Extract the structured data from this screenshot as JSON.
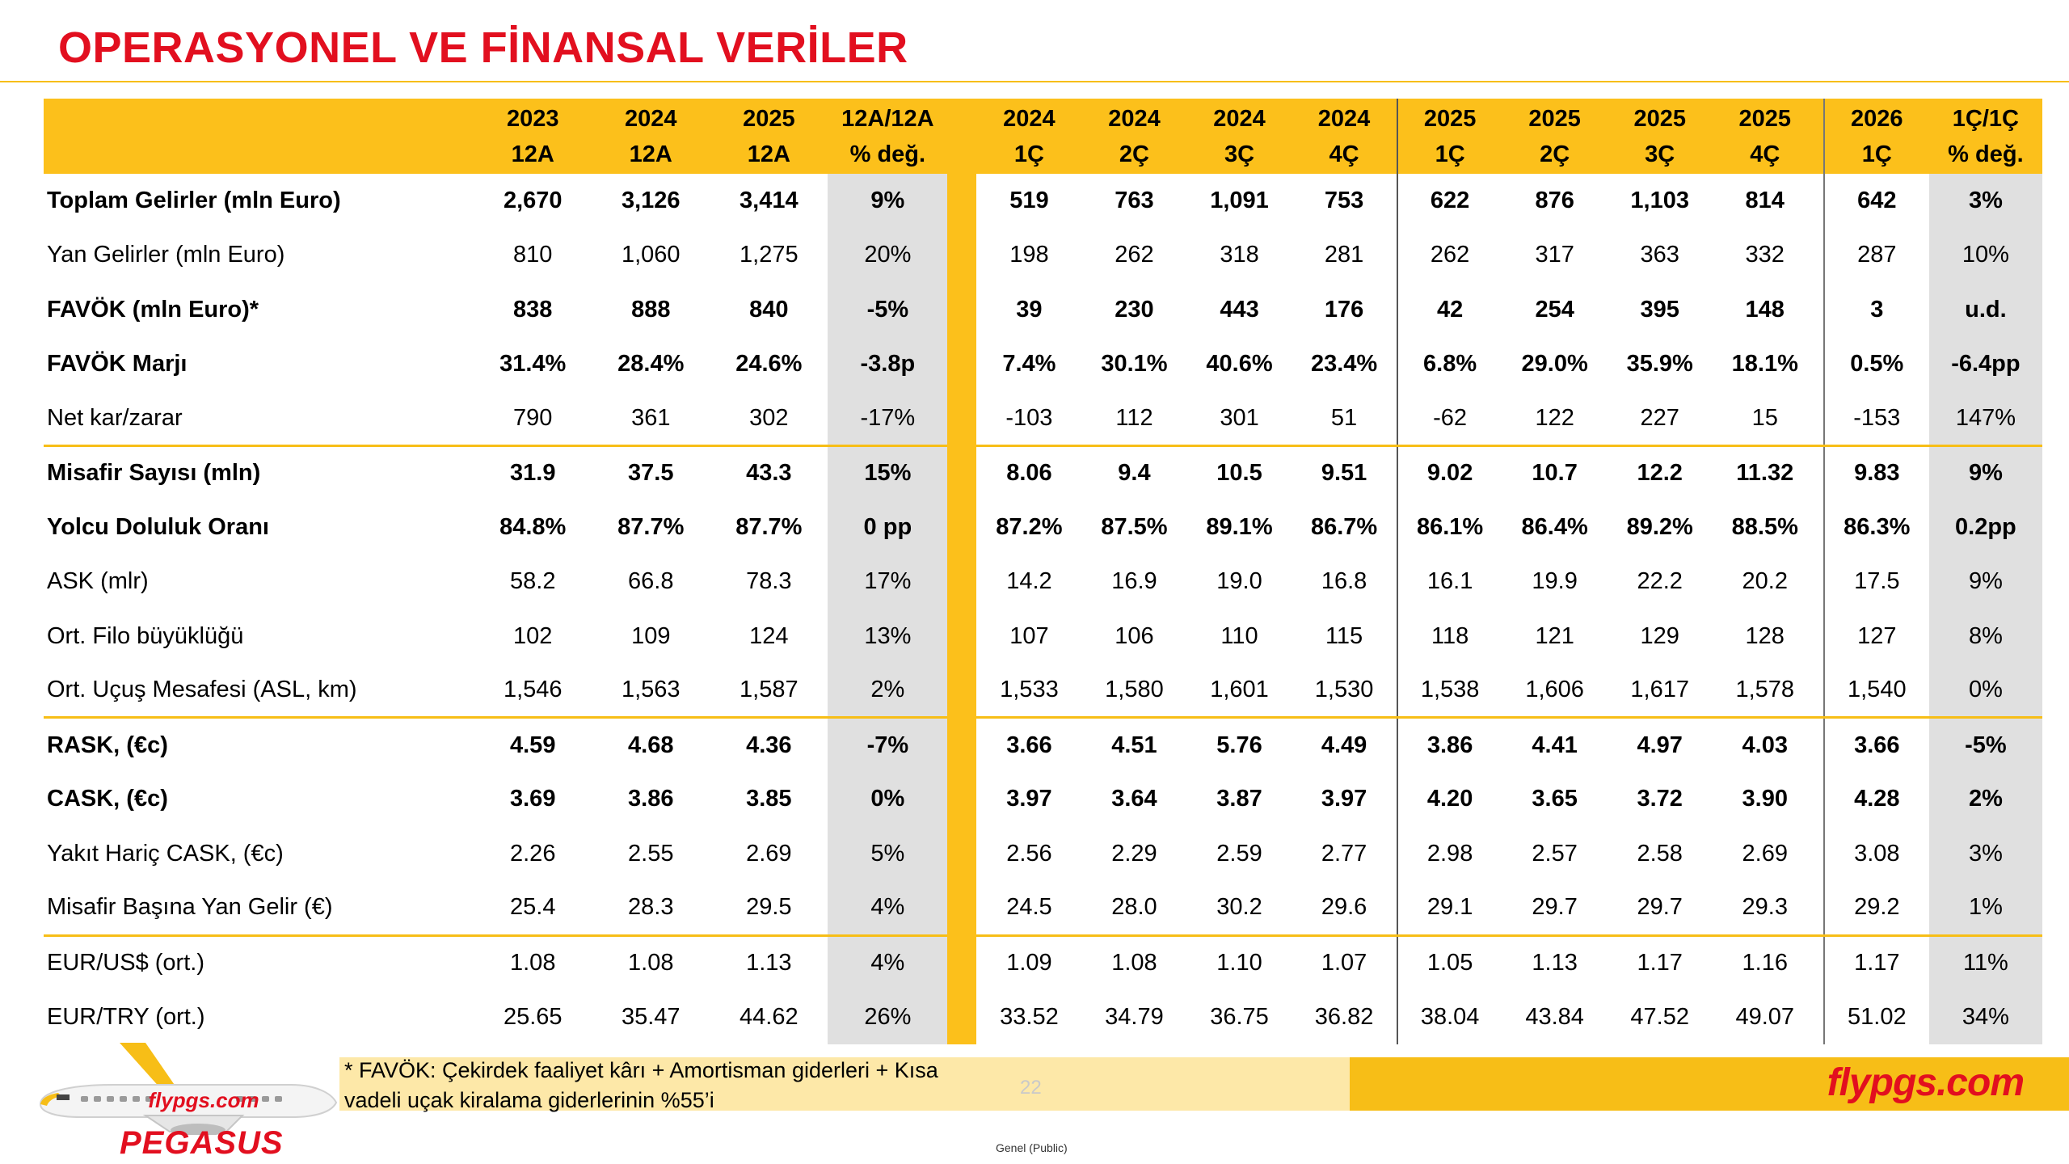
{
  "title": "OPERASYONEL VE FİNANSAL VERİLER",
  "colors": {
    "title_red": "#e20f1f",
    "accent_yellow": "#fcc01b",
    "pct_column_gray": "#e0e0e0"
  },
  "table": {
    "year_headers": [
      "2023",
      "2024",
      "2025",
      "12A/12A",
      "2024",
      "2024",
      "2024",
      "2024",
      "2025",
      "2025",
      "2025",
      "2025",
      "2026",
      "1Ç/1Ç"
    ],
    "period_headers": [
      "12A",
      "12A",
      "12A",
      "% değ.",
      "1Ç",
      "2Ç",
      "3Ç",
      "4Ç",
      "1Ç",
      "2Ç",
      "3Ç",
      "4Ç",
      "1Ç",
      "% değ."
    ],
    "rows": [
      {
        "label": "Toplam Gelirler (mln Euro)",
        "values": [
          "2,670",
          "3,126",
          "3,414",
          "9%",
          "519",
          "763",
          "1,091",
          "753",
          "622",
          "876",
          "1,103",
          "814",
          "642",
          "3%"
        ]
      },
      {
        "label": "Yan Gelirler (mln Euro)",
        "values": [
          "810",
          "1,060",
          "1,275",
          "20%",
          "198",
          "262",
          "318",
          "281",
          "262",
          "317",
          "363",
          "332",
          "287",
          "10%"
        ]
      },
      {
        "label": "FAVÖK (mln Euro)*",
        "values": [
          "838",
          "888",
          "840",
          "-5%",
          "39",
          "230",
          "443",
          "176",
          "42",
          "254",
          "395",
          "148",
          "3",
          "u.d."
        ]
      },
      {
        "label": "FAVÖK Marjı",
        "values": [
          "31.4%",
          "28.4%",
          "24.6%",
          "-3.8p",
          "7.4%",
          "30.1%",
          "40.6%",
          "23.4%",
          "6.8%",
          "29.0%",
          "35.9%",
          "18.1%",
          "0.5%",
          "-6.4pp"
        ]
      },
      {
        "label": "Net kar/zarar",
        "values": [
          "790",
          "361",
          "302",
          "-17%",
          "-103",
          "112",
          "301",
          "51",
          "-62",
          "122",
          "227",
          "15",
          "-153",
          "147%"
        ]
      },
      {
        "label": "Misafir Sayısı (mln)",
        "values": [
          "31.9",
          "37.5",
          "43.3",
          "15%",
          "8.06",
          "9.4",
          "10.5",
          "9.51",
          "9.02",
          "10.7",
          "12.2",
          "11.32",
          "9.83",
          "9%"
        ]
      },
      {
        "label": "Yolcu Doluluk Oranı",
        "values": [
          "84.8%",
          "87.7%",
          "87.7%",
          "0 pp",
          "87.2%",
          "87.5%",
          "89.1%",
          "86.7%",
          "86.1%",
          "86.4%",
          "89.2%",
          "88.5%",
          "86.3%",
          "0.2pp"
        ]
      },
      {
        "label": "ASK (mlr)",
        "values": [
          "58.2",
          "66.8",
          "78.3",
          "17%",
          "14.2",
          "16.9",
          "19.0",
          "16.8",
          "16.1",
          "19.9",
          "22.2",
          "20.2",
          "17.5",
          "9%"
        ]
      },
      {
        "label": "Ort. Filo büyüklüğü",
        "values": [
          "102",
          "109",
          "124",
          "13%",
          "107",
          "106",
          "110",
          "115",
          "118",
          "121",
          "129",
          "128",
          "127",
          "8%"
        ]
      },
      {
        "label": "Ort. Uçuş Mesafesi (ASL, km)",
        "values": [
          "1,546",
          "1,563",
          "1,587",
          "2%",
          "1,533",
          "1,580",
          "1,601",
          "1,530",
          "1,538",
          "1,606",
          "1,617",
          "1,578",
          "1,540",
          "0%"
        ]
      },
      {
        "label": "RASK, (€c)",
        "values": [
          "4.59",
          "4.68",
          "4.36",
          "-7%",
          "3.66",
          "4.51",
          "5.76",
          "4.49",
          "3.86",
          "4.41",
          "4.97",
          "4.03",
          "3.66",
          "-5%"
        ]
      },
      {
        "label": "CASK, (€c)",
        "values": [
          "3.69",
          "3.86",
          "3.85",
          "0%",
          "3.97",
          "3.64",
          "3.87",
          "3.97",
          "4.20",
          "3.65",
          "3.72",
          "3.90",
          "4.28",
          "2%"
        ]
      },
      {
        "label": "Yakıt Hariç CASK, (€c)",
        "values": [
          "2.26",
          "2.55",
          "2.69",
          "5%",
          "2.56",
          "2.29",
          "2.59",
          "2.77",
          "2.98",
          "2.57",
          "2.58",
          "2.69",
          "3.08",
          "3%"
        ]
      },
      {
        "label": "Misafir Başına Yan Gelir (€)",
        "values": [
          "25.4",
          "28.3",
          "29.5",
          "4%",
          "24.5",
          "28.0",
          "30.2",
          "29.6",
          "29.1",
          "29.7",
          "29.7",
          "29.3",
          "29.2",
          "1%"
        ]
      },
      {
        "label": "EUR/US$  (ort.)",
        "values": [
          "1.08",
          "1.08",
          "1.13",
          "4%",
          "1.09",
          "1.08",
          "1.10",
          "1.07",
          "1.05",
          "1.13",
          "1.17",
          "1.16",
          "1.17",
          "11%"
        ]
      },
      {
        "label": "EUR/TRY (ort.)",
        "values": [
          "25.65",
          "35.47",
          "44.62",
          "26%",
          "33.52",
          "34.79",
          "36.75",
          "36.82",
          "38.04",
          "43.84",
          "47.52",
          "49.07",
          "51.02",
          "34%"
        ]
      }
    ]
  },
  "footer": {
    "footnote_line1": "* FAVÖK: Çekirdek faaliyet kârı + Amortisman giderleri + Kısa",
    "footnote_line2": "vadeli uçak kiralama giderlerinin %55’i",
    "page_number": "22",
    "brand_url": "flypgs.com",
    "plane_livery_text": "flypgs.com",
    "brand_name": "PEGASUS",
    "classification": "Genel (Public)"
  }
}
